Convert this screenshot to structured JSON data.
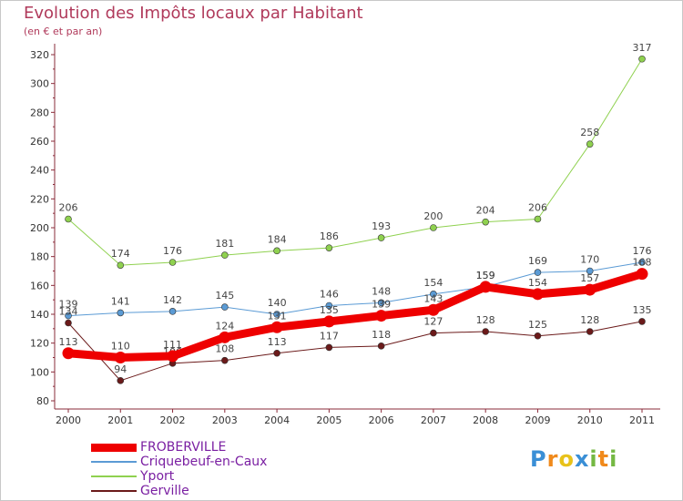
{
  "title": "Evolution des Impôts locaux par Habitant",
  "subtitle": "(en € et par an)",
  "logo": {
    "chars": [
      "P",
      "r",
      "o",
      "x",
      "i",
      "t",
      "i"
    ],
    "colors": [
      "#3a8fd6",
      "#f08a1c",
      "#e8c21a",
      "#3a8fd6",
      "#74b843",
      "#f08a1c",
      "#74b843"
    ]
  },
  "chart_data": {
    "type": "line",
    "title": "Evolution des Impôts locaux par Habitant",
    "subtitle": "(en € et par an)",
    "xlabel": "",
    "ylabel": "",
    "x": [
      "2000",
      "2001",
      "2002",
      "2003",
      "2004",
      "2005",
      "2006",
      "2007",
      "2008",
      "2009",
      "2010",
      "2011"
    ],
    "ylim": [
      80,
      320
    ],
    "yticks": [
      80,
      100,
      120,
      140,
      160,
      180,
      200,
      220,
      240,
      260,
      280,
      300,
      320
    ],
    "grid": false,
    "legend_position": "bottom-left",
    "series": [
      {
        "name": "FROBERVILLE",
        "color": "#ee0000",
        "values": [
          113,
          110,
          111,
          124,
          131,
          135,
          139,
          143,
          159,
          154,
          157,
          168
        ]
      },
      {
        "name": "Criquebeuf-en-Caux",
        "color": "#5b9bd5",
        "values": [
          139,
          141,
          142,
          145,
          140,
          146,
          148,
          154,
          159,
          169,
          170,
          176
        ]
      },
      {
        "name": "Yport",
        "color": "#8fd14f",
        "values": [
          206,
          174,
          176,
          181,
          184,
          186,
          193,
          200,
          204,
          206,
          258,
          317
        ]
      },
      {
        "name": "Gerville",
        "color": "#6b1a1a",
        "values": [
          134,
          94,
          106,
          108,
          113,
          117,
          118,
          127,
          128,
          125,
          128,
          135
        ]
      }
    ]
  }
}
